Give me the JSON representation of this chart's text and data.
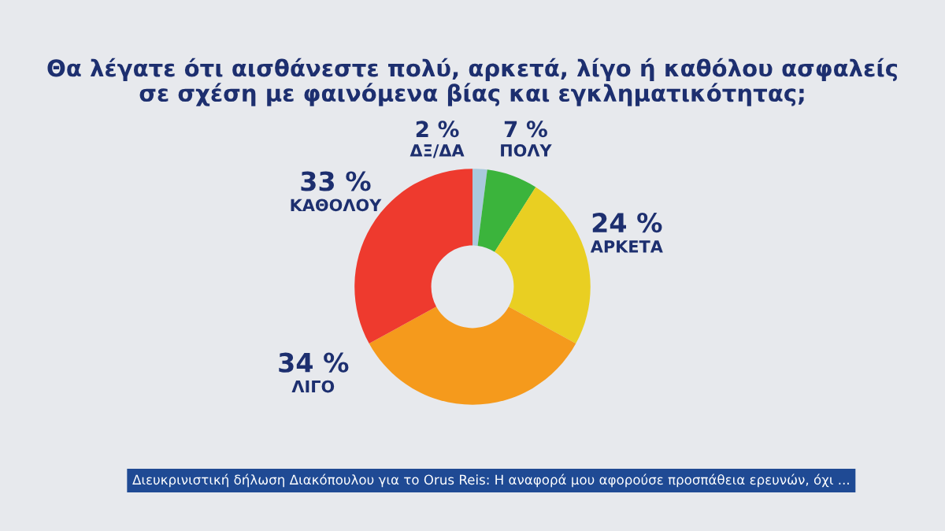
{
  "chart_data": {
    "type": "donut",
    "title": "Θα λέγατε ότι αισθάνεστε πολύ, αρκετά, λίγο ή καθόλου ασφαλείς\nσε σχέση με φαινόμενα βίας και εγκληματικότητας;",
    "categories": [
      "ΔΞ/ΔΑ",
      "ΠΟΛΥ",
      "ΑΡΚΕΤΑ",
      "ΛΙΓΟ",
      "ΚΑΘΟΛΟΥ"
    ],
    "values": [
      2,
      7,
      24,
      34,
      33
    ],
    "colors": [
      "#a9c9dc",
      "#3bb43c",
      "#e9cf22",
      "#f59a1c",
      "#ee3a2e"
    ],
    "value_labels": [
      "2 %",
      "7 %",
      "24 %",
      "34 %",
      "33 %"
    ],
    "annotations": [
      "Διευκρινιστική δήλωση Διακόπουλου για το Orus Reis: Η αναφορά μου αφορούσε προσπάθεια ερευνών, όχι ..."
    ]
  }
}
